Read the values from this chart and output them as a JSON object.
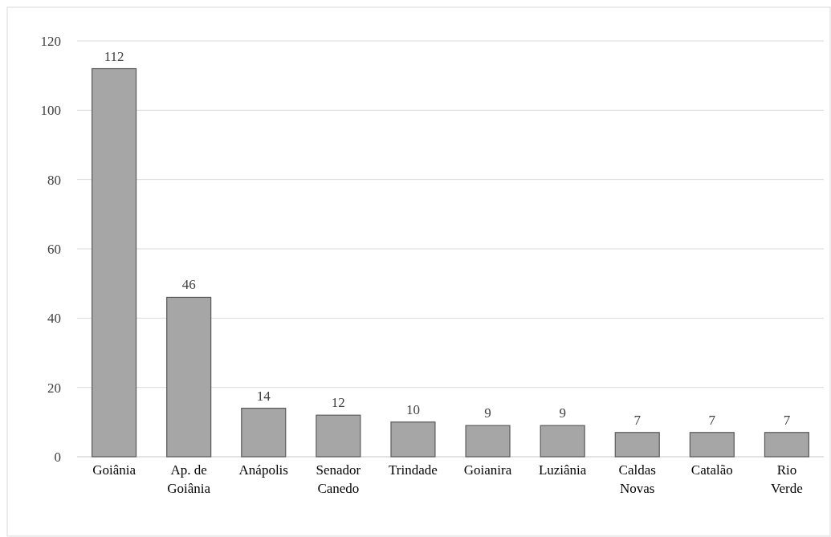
{
  "chart_data": {
    "type": "bar",
    "categories": [
      "Goiânia",
      "Ap. de Goiânia",
      "Anápolis",
      "Senador Canedo",
      "Trindade",
      "Goianira",
      "Luziânia",
      "Caldas Novas",
      "Catalão",
      "Rio Verde"
    ],
    "values": [
      112,
      46,
      14,
      12,
      10,
      9,
      9,
      7,
      7,
      7
    ],
    "color": "#a6a6a6",
    "ylim": [
      0,
      120
    ],
    "yticks": [
      0,
      20,
      40,
      60,
      80,
      100,
      120
    ],
    "grid": "y",
    "data_labels": true
  }
}
